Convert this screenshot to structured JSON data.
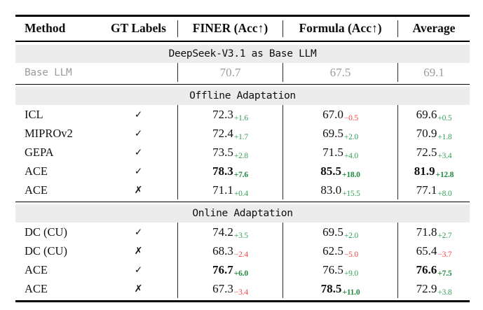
{
  "colors": {
    "green": "#33a055",
    "green_bold": "#1e8a3e",
    "red": "#fa4242",
    "gray_text": "#9c9c9c",
    "band_bg": "#ececec",
    "rule": "#000000"
  },
  "table": {
    "header": {
      "method": "Method",
      "gt": "GT Labels",
      "finer": "FINER (Acc↑)",
      "formula": "Formula (Acc↑)",
      "average": "Average"
    },
    "base_section": {
      "title": "DeepSeek-V3.1 as Base LLM",
      "row": {
        "method": "Base LLM",
        "finer": "70.7",
        "formula": "67.5",
        "average": "69.1"
      }
    },
    "sections": [
      {
        "title": "Offline Adaptation",
        "rows": [
          {
            "method": "ICL",
            "gt": "✓",
            "cells": [
              {
                "v": "72.3",
                "d": "+1.6"
              },
              {
                "v": "67.0",
                "d": "−0.5"
              },
              {
                "v": "69.6",
                "d": "+0.5"
              }
            ]
          },
          {
            "method": "MIPROv2",
            "gt": "✓",
            "cells": [
              {
                "v": "72.4",
                "d": "+1.7"
              },
              {
                "v": "69.5",
                "d": "+2.0"
              },
              {
                "v": "70.9",
                "d": "+1.8"
              }
            ]
          },
          {
            "method": "GEPA",
            "gt": "✓",
            "cells": [
              {
                "v": "73.5",
                "d": "+2.8"
              },
              {
                "v": "71.5",
                "d": "+4.0"
              },
              {
                "v": "72.5",
                "d": "+3.4"
              }
            ]
          },
          {
            "method": "ACE",
            "gt": "✓",
            "cells": [
              {
                "v": "78.3",
                "d": "+7.6"
              },
              {
                "v": "85.5",
                "d": "+18.0"
              },
              {
                "v": "81.9",
                "d": "+12.8"
              }
            ]
          },
          {
            "method": "ACE",
            "gt": "✗",
            "cells": [
              {
                "v": "71.1",
                "d": "+0.4"
              },
              {
                "v": "83.0",
                "d": "+15.5"
              },
              {
                "v": "77.1",
                "d": "+8.0"
              }
            ]
          }
        ]
      },
      {
        "title": "Online Adaptation",
        "rows": [
          {
            "method": "DC (CU)",
            "gt": "✓",
            "cells": [
              {
                "v": "74.2",
                "d": "+3.5"
              },
              {
                "v": "69.5",
                "d": "+2.0"
              },
              {
                "v": "71.8",
                "d": "+2.7"
              }
            ]
          },
          {
            "method": "DC (CU)",
            "gt": "✗",
            "cells": [
              {
                "v": "68.3",
                "d": "−2.4"
              },
              {
                "v": "62.5",
                "d": "−5.0"
              },
              {
                "v": "65.4",
                "d": "−3.7"
              }
            ]
          },
          {
            "method": "ACE",
            "gt": "✓",
            "cells": [
              {
                "v": "76.7",
                "d": "+6.0"
              },
              {
                "v": "76.5",
                "d": "+9.0"
              },
              {
                "v": "76.6",
                "d": "+7.5"
              }
            ]
          },
          {
            "method": "ACE",
            "gt": "✗",
            "cells": [
              {
                "v": "67.3",
                "d": "−3.4"
              },
              {
                "v": "78.5",
                "d": "+11.0"
              },
              {
                "v": "72.9",
                "d": "+3.8"
              }
            ]
          }
        ]
      }
    ]
  }
}
